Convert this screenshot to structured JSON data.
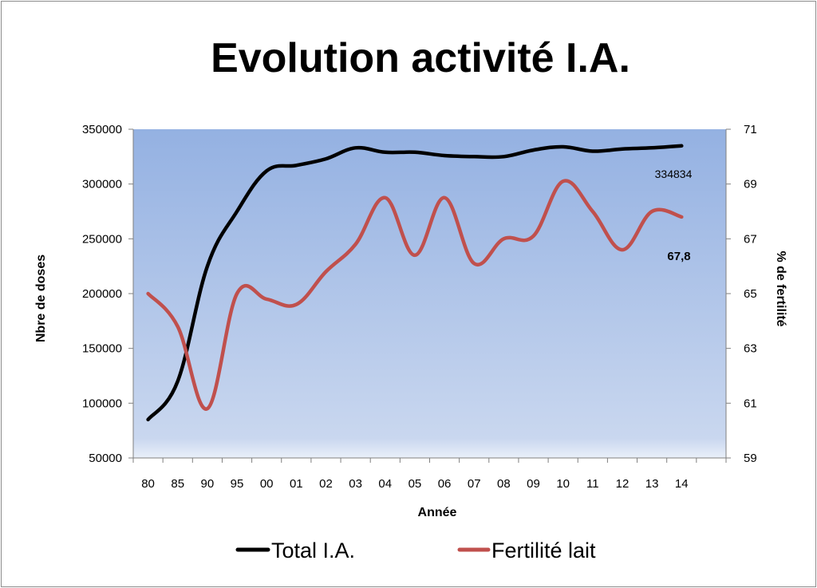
{
  "chart_data": {
    "type": "line",
    "title": "Evolution activité I.A.",
    "xlabel": "Année",
    "ylabel": "Nbre de doses",
    "y2label": "% de fertilité",
    "categories": [
      "80",
      "85",
      "90",
      "95",
      "00",
      "01",
      "02",
      "03",
      "04",
      "05",
      "06",
      "07",
      "08",
      "09",
      "10",
      "11",
      "12",
      "13",
      "14"
    ],
    "ylim": [
      50000,
      350000
    ],
    "yticks": [
      "350000",
      "300000",
      "250000",
      "200000",
      "150000",
      "100000",
      "50000"
    ],
    "y2lim": [
      59,
      71
    ],
    "y2ticks": [
      "71",
      "69",
      "67",
      "65",
      "63",
      "61",
      "59"
    ],
    "series": [
      {
        "name": "Total I.A.",
        "axis": "left",
        "color": "#000000",
        "values": [
          85000,
          120000,
          225000,
          275000,
          312000,
          317000,
          323000,
          333000,
          329000,
          329000,
          326000,
          325000,
          325000,
          331000,
          334000,
          330000,
          332000,
          333000,
          334834
        ]
      },
      {
        "name": "Fertilité lait",
        "axis": "right",
        "color": "#c0504d",
        "values": [
          65.0,
          63.8,
          60.8,
          65.0,
          64.8,
          64.6,
          65.8,
          66.8,
          68.5,
          66.4,
          68.5,
          66.1,
          67.0,
          67.1,
          69.1,
          68.0,
          66.6,
          68.0,
          67.8
        ]
      }
    ],
    "annotations": [
      "334834",
      "67,8"
    ],
    "legend_position": "bottom",
    "grid": false,
    "plot_background": "gradient-blue"
  }
}
